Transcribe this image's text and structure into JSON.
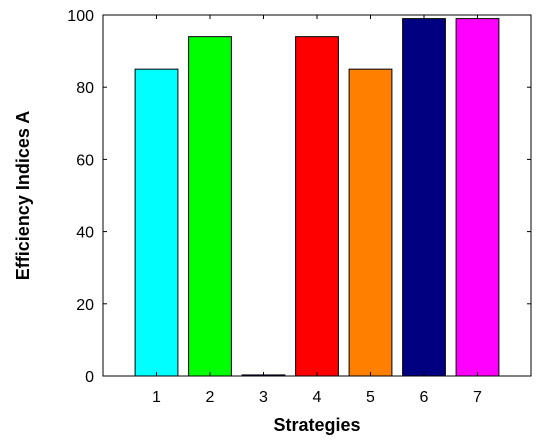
{
  "chart_data": {
    "type": "bar",
    "title": "",
    "xlabel": "Strategies",
    "ylabel": "Efficiency Indices A",
    "categories": [
      "1",
      "2",
      "3",
      "4",
      "5",
      "6",
      "7"
    ],
    "values": [
      85,
      94,
      0.3,
      94,
      85,
      99,
      99
    ],
    "colors": [
      "#00ffff",
      "#00ff00",
      "#0000ff",
      "#ff0000",
      "#ff8000",
      "#000080",
      "#ff00ff"
    ],
    "ylim": [
      0,
      100
    ],
    "xlim": [
      0,
      8
    ],
    "yticks": [
      "0",
      "20",
      "40",
      "60",
      "80",
      "100"
    ],
    "yticks_values": [
      0,
      20,
      40,
      60,
      80,
      100
    ],
    "grid": false,
    "legend": "none",
    "box": true
  }
}
